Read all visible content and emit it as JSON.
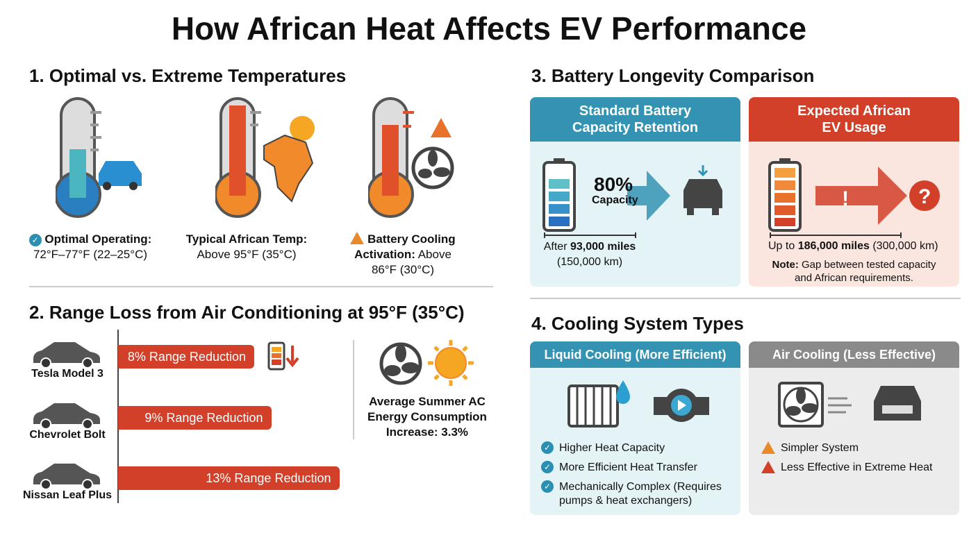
{
  "title": "How African Heat Affects EV Performance",
  "section1": {
    "heading": "1. Optimal vs. Extreme Temperatures",
    "items": [
      {
        "label_bold": "Optimal Operating:",
        "label": "72°F–77°F (22–25°C)",
        "icon": "check-circle-icon",
        "thermometer_level": 0.45,
        "color": "#2a8fb0"
      },
      {
        "label_bold": "Typical African Temp:",
        "label": "Above 95°F (35°C)",
        "icon": "africa-sun-icon",
        "thermometer_level": 0.95,
        "color": "#e8722a"
      },
      {
        "label_bold": "Battery Cooling",
        "label_bold2": "Activation:",
        "label": "Above",
        "label2": "86°F (30°C)",
        "icon": "warning-icon",
        "thermometer_level": 0.8,
        "color": "#e8722a"
      }
    ]
  },
  "section2": {
    "heading": "2. Range Loss from Air Conditioning at 95°F (35°C)",
    "cars": [
      {
        "name": "Tesla Model 3",
        "reduction": 8,
        "label": "8% Range Reduction"
      },
      {
        "name": "Chevrolet Bolt",
        "reduction": 9,
        "label": "9% Range Reduction"
      },
      {
        "name": "Nissan Leaf Plus",
        "reduction": 13,
        "label": "13% Range Reduction"
      }
    ],
    "ac_note": [
      "Average Summer AC",
      "Energy Consumption",
      "Increase: 3.3%"
    ],
    "bar_color": "#d2402a"
  },
  "section3": {
    "heading": "3. Battery Longevity Comparison",
    "standard": {
      "title1": "Standard Battery",
      "title2": "Capacity Retention",
      "value": "80%",
      "value_label": "Capacity",
      "dist_pre": "After ",
      "dist_bold": "93,000 miles",
      "dist_km": "(150,000 km)",
      "color": "#2a8fb0"
    },
    "african": {
      "title1": "Expected African",
      "title2": "EV Usage",
      "dist_pre": "Up to ",
      "dist_bold": "186,000 miles",
      "dist_km": " (300,000 km)",
      "note_bold": "Note:",
      "note": " Gap between tested capacity",
      "note2": "and African requirements.",
      "color": "#d2402a"
    }
  },
  "section4": {
    "heading": "4. Cooling System Types",
    "liquid": {
      "title": "Liquid Cooling (More Efficient)",
      "points": [
        "Higher Heat Capacity",
        "More Efficient Heat Transfer",
        "Mechanically Complex (Requires",
        "pumps & heat exchangers)"
      ]
    },
    "air": {
      "title": "Air Cooling (Less Effective)",
      "points": [
        "Simpler System",
        "Less Effective in Extreme Heat"
      ]
    }
  }
}
